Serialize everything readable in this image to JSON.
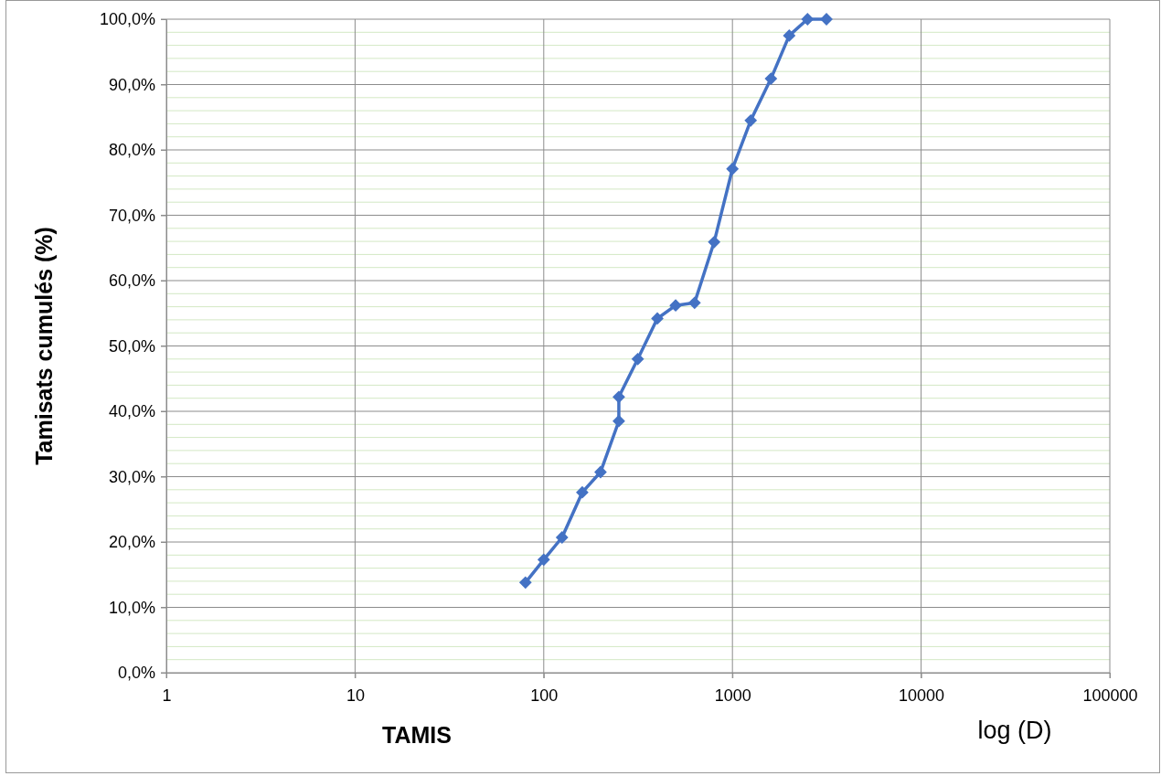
{
  "chart_data": {
    "type": "line",
    "xlabel": "TAMIS",
    "ylabel": "Tamisats cumulés (%)",
    "annotations": [
      "log (D)"
    ],
    "log": "x",
    "grid": true,
    "marker": "diamond",
    "line_style": "solid",
    "xlim": [
      1,
      100000
    ],
    "xticks": [
      1,
      10,
      100,
      1000,
      10000,
      100000
    ],
    "ylim": [
      0,
      100
    ],
    "yticks": [
      {
        "value": 0,
        "label": "0,0%"
      },
      {
        "value": 10,
        "label": "10,0%"
      },
      {
        "value": 20,
        "label": "20,0%"
      },
      {
        "value": 30,
        "label": "30,0%"
      },
      {
        "value": 40,
        "label": "40,0%"
      },
      {
        "value": 50,
        "label": "50,0%"
      },
      {
        "value": 60,
        "label": "60,0%"
      },
      {
        "value": 70,
        "label": "70,0%"
      },
      {
        "value": 80,
        "label": "80,0%"
      },
      {
        "value": 90,
        "label": "90,0%"
      },
      {
        "value": 100,
        "label": "100,0%"
      }
    ],
    "series": [
      {
        "color": "#4472c4",
        "x": [
          80,
          100,
          125,
          160,
          200,
          250,
          250,
          315,
          400,
          500,
          630,
          800,
          1000,
          1250,
          1600,
          2000,
          2500,
          3150
        ],
        "values": [
          13.8,
          17.3,
          20.7,
          27.6,
          30.7,
          38.5,
          42.2,
          48.0,
          54.2,
          56.2,
          56.6,
          65.9,
          77.1,
          84.5,
          90.9,
          97.5,
          100,
          100
        ]
      }
    ]
  }
}
